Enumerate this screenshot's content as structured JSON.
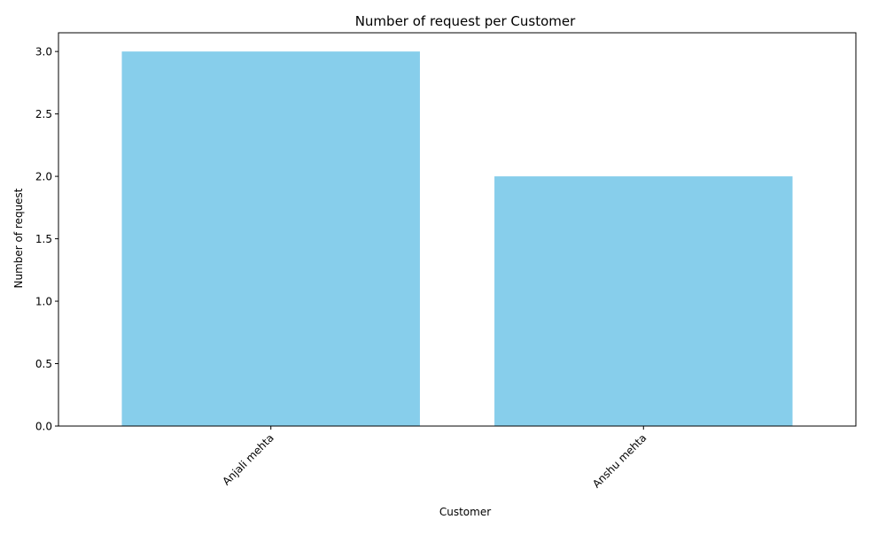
{
  "chart_data": {
    "type": "bar",
    "title": "Number  of request per Customer",
    "xlabel": "Customer",
    "ylabel": "Number of request",
    "categories": [
      "Anjali mehta",
      "Anshu mehta"
    ],
    "values": [
      3,
      2
    ],
    "ylim": [
      0,
      3.15
    ],
    "yticks": [
      0.0,
      0.5,
      1.0,
      1.5,
      2.0,
      2.5,
      3.0
    ],
    "ytick_labels": [
      "0.0",
      "0.5",
      "1.0",
      "1.5",
      "2.0",
      "2.5",
      "3.0"
    ],
    "bar_color": "#87ceeb",
    "grid": false,
    "legend": "none"
  }
}
